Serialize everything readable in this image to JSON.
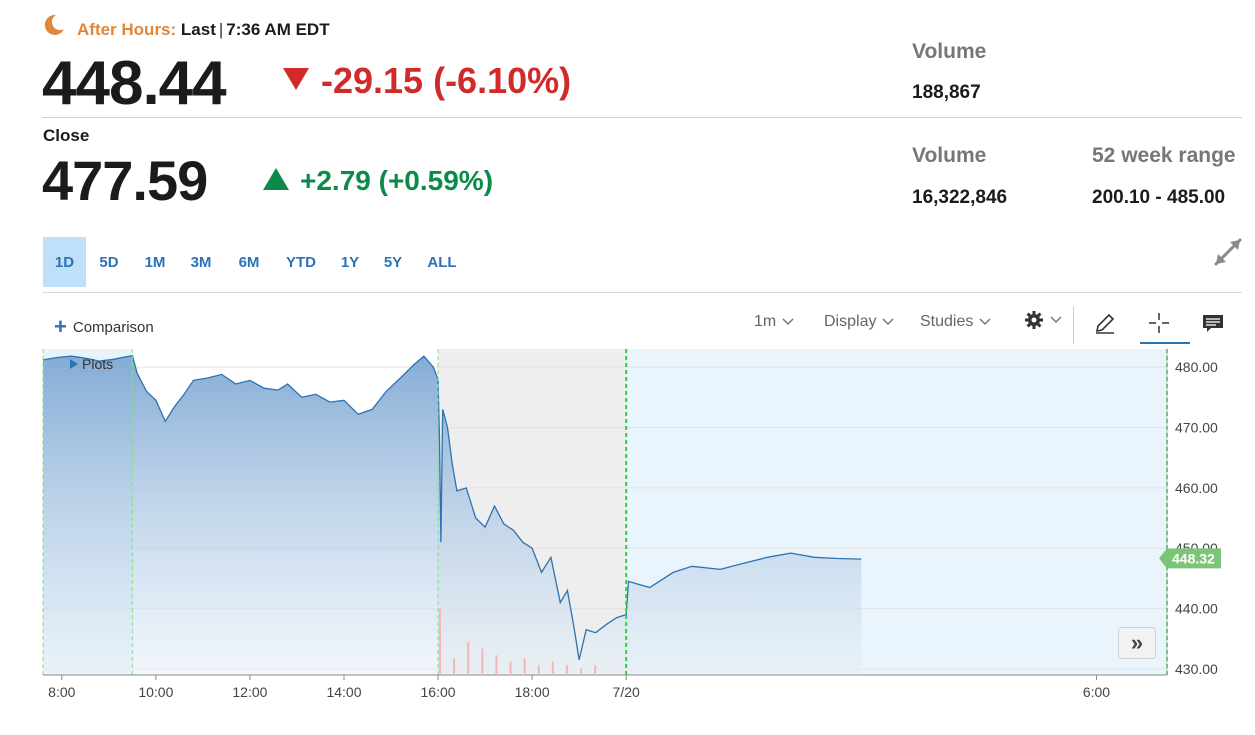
{
  "header": {
    "after_hours_label": "After Hours:",
    "last_label": "Last",
    "separator": "|",
    "time": "7:36 AM EDT",
    "after_hours_price": "448.44",
    "after_hours_change": "-29.15 (-6.10%)",
    "close_label": "Close",
    "close_price": "477.59",
    "close_change": "+2.79 (+0.59%)"
  },
  "stats": {
    "ah_volume_label": "Volume",
    "ah_volume_value": "188,867",
    "volume_label": "Volume",
    "volume_value": "16,322,846",
    "range_label": "52 week range",
    "range_value": "200.10 - 485.00"
  },
  "ranges": [
    "1D",
    "5D",
    "1M",
    "3M",
    "6M",
    "YTD",
    "1Y",
    "5Y",
    "ALL"
  ],
  "active_range": "1D",
  "toolbar": {
    "comparison_label": "Comparison",
    "interval_label": "1m",
    "display_label": "Display",
    "studies_label": "Studies",
    "plots_label": "Plots"
  },
  "colors": {
    "down": "#d12a2a",
    "up": "#0c8a4a",
    "line": "#2f72b0",
    "accent": "#2a73b8",
    "last_price_tag": "#7cc478"
  },
  "chart_data": {
    "type": "area",
    "x_tick_labels": [
      "8:00",
      "10:00",
      "12:00",
      "14:00",
      "16:00",
      "18:00",
      "7/20",
      "6:00"
    ],
    "y_tick_labels": [
      "480.00",
      "470.00",
      "460.00",
      "450.00",
      "440.00",
      "430.00"
    ],
    "ylim": [
      429,
      483
    ],
    "x_unit": "hours since 7:36 (day 1)",
    "xlim": [
      0,
      23.9
    ],
    "sessions": {
      "premarket": [
        0,
        1.9
      ],
      "regular": [
        1.9,
        8.4
      ],
      "afterhours": [
        8.4,
        12.4
      ],
      "overnight": [
        12.4,
        23.9
      ]
    },
    "last_price_tag": "448.32",
    "series": [
      {
        "values": [
          [
            0.0,
            481.2
          ],
          [
            0.3,
            481.6
          ],
          [
            0.6,
            481.8
          ],
          [
            0.9,
            481.5
          ],
          [
            1.2,
            481.0
          ],
          [
            1.5,
            481.3
          ],
          [
            1.9,
            481.9
          ],
          [
            2.0,
            479.0
          ],
          [
            2.2,
            476.0
          ],
          [
            2.4,
            474.5
          ],
          [
            2.6,
            471.0
          ],
          [
            2.8,
            473.5
          ],
          [
            3.0,
            475.5
          ],
          [
            3.2,
            477.8
          ],
          [
            3.5,
            478.2
          ],
          [
            3.8,
            478.8
          ],
          [
            4.1,
            477.2
          ],
          [
            4.4,
            477.8
          ],
          [
            4.7,
            476.5
          ],
          [
            5.0,
            476.2
          ],
          [
            5.2,
            477.2
          ],
          [
            5.5,
            475.0
          ],
          [
            5.8,
            475.5
          ],
          [
            6.1,
            474.2
          ],
          [
            6.4,
            474.5
          ],
          [
            6.7,
            472.2
          ],
          [
            7.0,
            473.0
          ],
          [
            7.3,
            476.0
          ],
          [
            7.6,
            478.2
          ],
          [
            7.9,
            480.5
          ],
          [
            8.1,
            481.8
          ],
          [
            8.3,
            480.0
          ],
          [
            8.4,
            478.0
          ],
          [
            8.43,
            468.0
          ],
          [
            8.46,
            451.0
          ],
          [
            8.5,
            473.0
          ],
          [
            8.6,
            470.0
          ],
          [
            8.7,
            464.0
          ],
          [
            8.8,
            459.5
          ],
          [
            9.0,
            460.0
          ],
          [
            9.2,
            455.0
          ],
          [
            9.4,
            453.5
          ],
          [
            9.6,
            457.0
          ],
          [
            9.8,
            454.0
          ],
          [
            10.0,
            453.0
          ],
          [
            10.2,
            451.0
          ],
          [
            10.4,
            450.0
          ],
          [
            10.6,
            446.0
          ],
          [
            10.8,
            448.5
          ],
          [
            11.0,
            441.0
          ],
          [
            11.15,
            443.0
          ],
          [
            11.3,
            436.5
          ],
          [
            11.4,
            431.5
          ],
          [
            11.55,
            436.5
          ],
          [
            11.75,
            436.0
          ],
          [
            12.0,
            437.5
          ],
          [
            12.2,
            438.5
          ],
          [
            12.4,
            439.0
          ],
          [
            12.45,
            444.5
          ],
          [
            12.9,
            443.5
          ],
          [
            13.4,
            446.0
          ],
          [
            13.8,
            447.0
          ],
          [
            14.4,
            446.5
          ],
          [
            14.9,
            447.5
          ],
          [
            15.4,
            448.5
          ],
          [
            15.9,
            449.2
          ],
          [
            16.4,
            448.5
          ],
          [
            16.9,
            448.3
          ],
          [
            17.4,
            448.2
          ]
        ]
      }
    ]
  }
}
